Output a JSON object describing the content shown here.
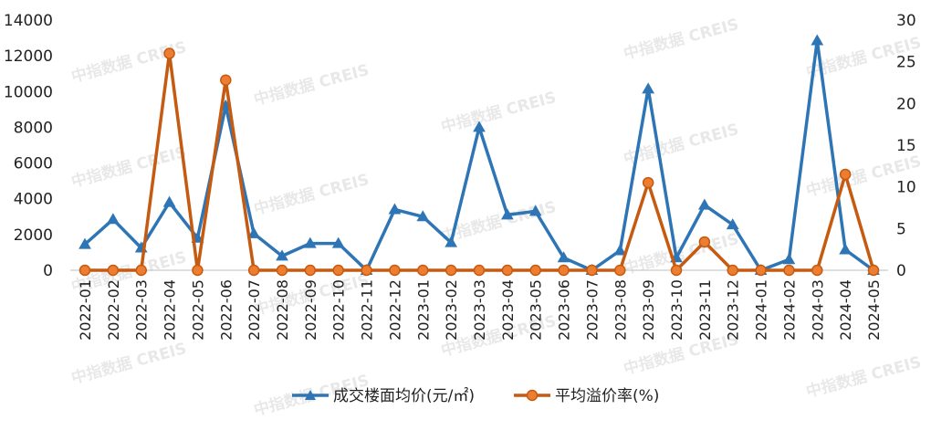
{
  "chart_data": {
    "type": "line",
    "categories": [
      "2022-01",
      "2022-02",
      "2022-03",
      "2022-04",
      "2022-05",
      "2022-06",
      "2022-07",
      "2022-08",
      "2022-09",
      "2022-10",
      "2022-11",
      "2022-12",
      "2023-01",
      "2023-02",
      "2023-03",
      "2023-04",
      "2023-05",
      "2023-06",
      "2023-07",
      "2023-08",
      "2023-09",
      "2023-10",
      "2023-11",
      "2023-12",
      "2024-01",
      "2024-02",
      "2024-03",
      "2024-04",
      "2024-05"
    ],
    "series": [
      {
        "name": "成交楼面均价(元/㎡)",
        "axis": "left",
        "color": "#2e75b6",
        "marker": "triangle",
        "values": [
          1450,
          2850,
          1250,
          3800,
          1800,
          9200,
          2050,
          800,
          1500,
          1500,
          0,
          3400,
          3000,
          1550,
          8000,
          3100,
          3300,
          700,
          0,
          1100,
          10150,
          700,
          3650,
          2550,
          0,
          600,
          12850,
          1150,
          0
        ]
      },
      {
        "name": "平均溢价率(%)",
        "axis": "right",
        "color": "#c55a11",
        "marker": "circle",
        "values": [
          0,
          0,
          0,
          26,
          0,
          22.8,
          0,
          0,
          0,
          0,
          0,
          0,
          0,
          0,
          0,
          0,
          0,
          0,
          0,
          0,
          10.5,
          0,
          3.4,
          0,
          0,
          0,
          0,
          11.5,
          0
        ]
      }
    ],
    "yleft": {
      "min": 0,
      "max": 14000,
      "ticks": [
        "0",
        "2000",
        "4000",
        "6000",
        "8000",
        "10000",
        "12000",
        "14000"
      ]
    },
    "yright": {
      "min": 0,
      "max": 30,
      "ticks": [
        "0",
        "5",
        "10",
        "15",
        "20",
        "25",
        "30"
      ]
    },
    "grid": false,
    "legend_position": "bottom"
  },
  "watermark": {
    "text": "中指数据 CREIS"
  }
}
